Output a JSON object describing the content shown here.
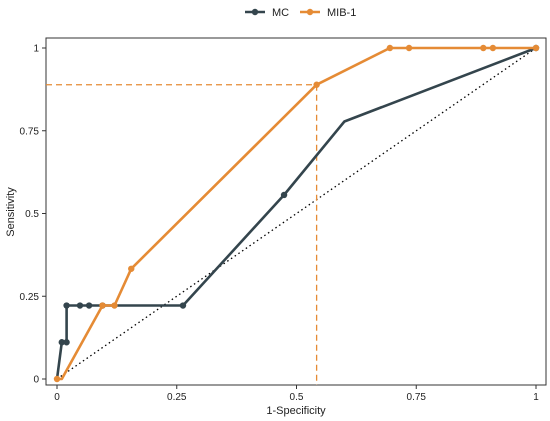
{
  "chart_data": {
    "type": "line",
    "xlabel": "1-Specificity",
    "ylabel": "Sensitivity",
    "xlim": [
      0,
      1
    ],
    "ylim": [
      0,
      1
    ],
    "x_ticks": [
      0,
      0.25,
      0.5,
      0.75,
      1
    ],
    "x_tick_labels": [
      "0",
      "0.25",
      "0.5",
      "0.75",
      "1"
    ],
    "y_ticks": [
      0,
      0.25,
      0.5,
      0.75,
      1
    ],
    "y_tick_labels": [
      "0",
      "0.25",
      "0.5",
      "0.75",
      "1"
    ],
    "grid": false,
    "legend_position": "top-center",
    "diagonal_reference": true,
    "series": [
      {
        "name": "MC",
        "color": "#34454d",
        "points": [
          {
            "x": 0.0,
            "y": 0.0
          },
          {
            "x": 0.01,
            "y": 0.111
          },
          {
            "x": 0.02,
            "y": 0.111
          },
          {
            "x": 0.02,
            "y": 0.222
          },
          {
            "x": 0.048,
            "y": 0.222
          },
          {
            "x": 0.067,
            "y": 0.222
          },
          {
            "x": 0.095,
            "y": 0.222
          },
          {
            "x": 0.263,
            "y": 0.222
          },
          {
            "x": 0.474,
            "y": 0.556
          },
          {
            "x": 0.6,
            "y": 0.778
          },
          {
            "x": 1.0,
            "y": 1.0
          }
        ],
        "markers_at": [
          1,
          2,
          3,
          4,
          5,
          6,
          7,
          8,
          10
        ]
      },
      {
        "name": "MIB-1",
        "color": "#e58b35",
        "points": [
          {
            "x": 0.0,
            "y": 0.0
          },
          {
            "x": 0.01,
            "y": 0.0
          },
          {
            "x": 0.095,
            "y": 0.222
          },
          {
            "x": 0.12,
            "y": 0.222
          },
          {
            "x": 0.155,
            "y": 0.333
          },
          {
            "x": 0.542,
            "y": 0.889
          },
          {
            "x": 0.695,
            "y": 1.0
          },
          {
            "x": 0.735,
            "y": 1.0
          },
          {
            "x": 0.89,
            "y": 1.0
          },
          {
            "x": 0.91,
            "y": 1.0
          },
          {
            "x": 1.0,
            "y": 1.0
          }
        ],
        "markers_at": [
          0,
          2,
          3,
          4,
          5,
          6,
          7,
          8,
          9,
          10
        ]
      }
    ],
    "cutoff": {
      "x": 0.542,
      "y": 0.889,
      "color": "#e58b35"
    }
  }
}
